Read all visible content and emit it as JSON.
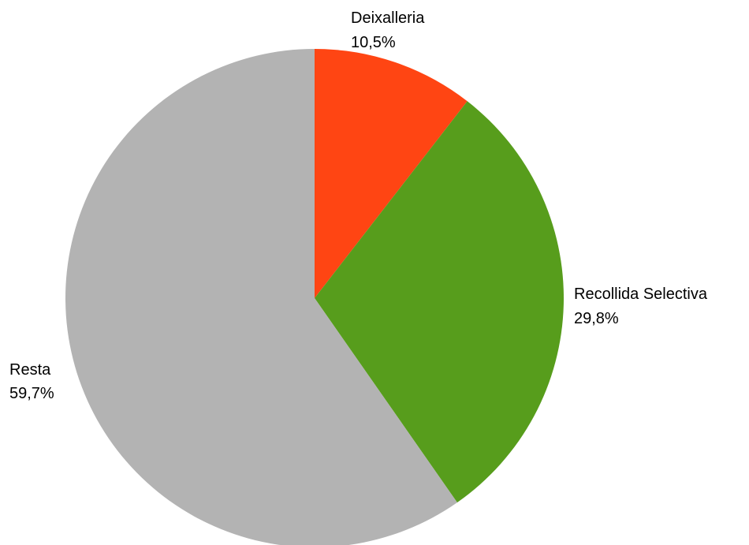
{
  "chart_data": {
    "type": "pie",
    "title": "",
    "start_angle": "12 o'clock, clockwise",
    "slices": [
      {
        "label": "Deixalleria",
        "value": 10.5,
        "value_label": "10,5%",
        "color": "#ff4513"
      },
      {
        "label": "Recollida Selectiva",
        "value": 29.8,
        "value_label": "29,8%",
        "color": "#579d1c"
      },
      {
        "label": "Resta",
        "value": 59.7,
        "value_label": "59,7%",
        "color": "#b3b3b3"
      }
    ]
  }
}
